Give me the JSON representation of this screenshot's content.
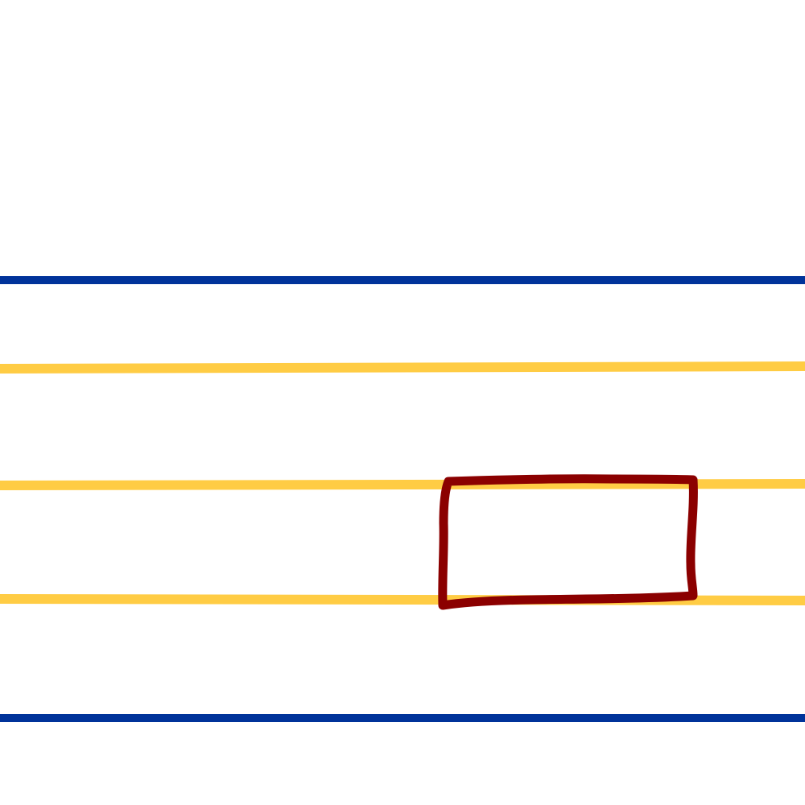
{
  "colors": {
    "background": "#ffffff",
    "boundary_line": "#00339a",
    "lane_line": "#ffcc44",
    "rectangle_stroke": "#8b0000"
  },
  "elements": {
    "boundary_lines": [
      "top-boundary-line",
      "bottom-boundary-line"
    ],
    "lane_lines": [
      "lane-line-1",
      "lane-line-2",
      "lane-line-3"
    ],
    "shape": "hand-drawn-rectangle"
  }
}
